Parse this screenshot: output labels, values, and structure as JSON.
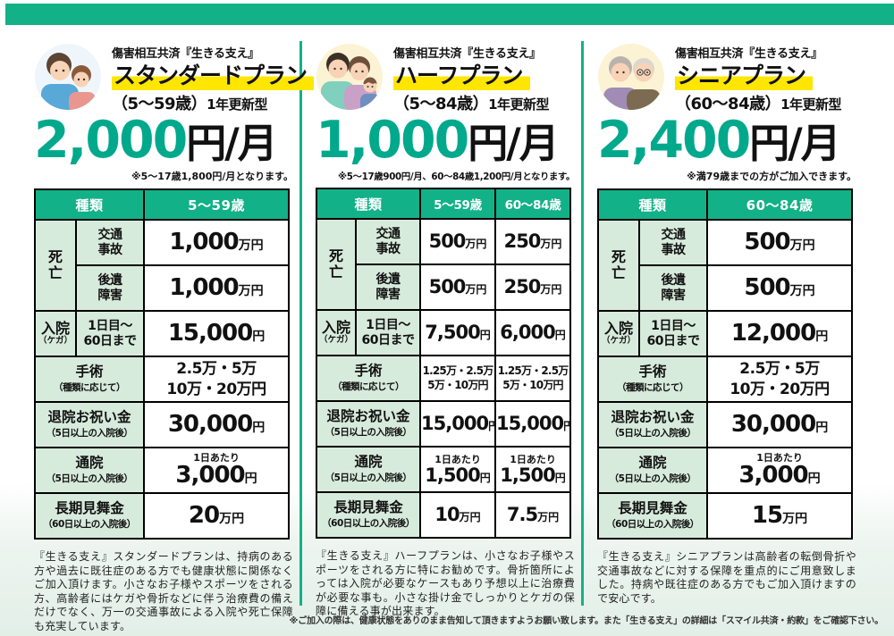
{
  "colors": {
    "teal_accent": "#13b188",
    "price_green": "#00a98c",
    "highlight_yellow": "#ffe600",
    "label_cell_green": "#d7ebdc",
    "table_border": "#000000"
  },
  "benefit_rows": [
    {
      "group": "死\n亡",
      "group_rowspan": 2,
      "sub": "交通\n事故"
    },
    {
      "sub": "後遺\n障害"
    },
    {
      "group": "入院\n（ケガ）",
      "group_rowspan": 1,
      "sub": "1日目～\n60日まで"
    },
    {
      "merged": "手術",
      "note": "（種類に応じて）"
    },
    {
      "merged": "退院お祝い金",
      "note": "（5日以上の入院後）"
    },
    {
      "merged": "通院",
      "note": "（5日以上の入院後）"
    },
    {
      "merged": "長期見舞金",
      "note": "（60日以上の入院後）"
    }
  ],
  "plans": [
    {
      "series_label": "傷害相互共済『生きる支え』",
      "plan_name": "スタンダードプラン",
      "age_range": "（5～59歳）",
      "renewal_type": "1年更新型",
      "price_amount": "2,000",
      "price_unit": "円/月",
      "price_note": "※5～17歳1,800円/月となります。",
      "avatar": "parent-and-child-illustration",
      "table": {
        "kind_header": "種類",
        "columns": [
          {
            "age_label": "5～59歳",
            "values": [
              "1,000万円",
              "1,000万円",
              "15,000円",
              "2.5万・5万|10万・20万円",
              "30,000円",
              "1日あたり|3,000円",
              "20万円"
            ]
          }
        ]
      },
      "description": "『生きる支え』スタンダードプランは、持病のある方や過去に既往症のある方でも健康状態に関係なくご加入頂けます。小さなお子様やスポーツをされる方、高齢者にはケガや骨折などに伴う治療費の備えだけでなく、万一の交通事故による入院や死亡保障も充実しています。"
    },
    {
      "series_label": "傷害相互共済『生きる支え』",
      "plan_name": "ハーフプラン",
      "age_range": "（5～84歳）",
      "renewal_type": "1年更新型",
      "price_amount": "1,000",
      "price_unit": "円/月",
      "price_note": "※5～17歳900円/月、60～84歳1,200円/月となります。",
      "avatar": "family-with-baby-illustration",
      "table": {
        "kind_header": "種類",
        "columns": [
          {
            "age_label": "5～59歳",
            "values": [
              "500万円",
              "500万円",
              "7,500円",
              "1.25万・2.5万|5万・10万円",
              "15,000円",
              "1日あたり|1,500円",
              "10万円"
            ]
          },
          {
            "age_label": "60～84歳",
            "values": [
              "250万円",
              "250万円",
              "6,000円",
              "1.25万・2.5万|5万・10万円",
              "15,000円",
              "1日あたり|1,500円",
              "7.5万円"
            ]
          }
        ]
      },
      "description": "『生きる支え』ハーフプランは、小さなお子様やスポーツをされる方に特にお勧めです。骨折箇所によっては入院が必要なケースもあり予想以上に治療費が必要な事も。小さな掛け金でしっかりとケガの保障に備える事が出来ます。"
    },
    {
      "series_label": "傷害相互共済『生きる支え』",
      "plan_name": "シニアプラン",
      "age_range": "（60～84歳）",
      "renewal_type": "1年更新型",
      "price_amount": "2,400",
      "price_unit": "円/月",
      "price_note": "※満79歳までの方がご加入できます。",
      "avatar": "senior-couple-illustration",
      "table": {
        "kind_header": "種類",
        "columns": [
          {
            "age_label": "60～84歳",
            "values": [
              "500万円",
              "500万円",
              "12,000円",
              "2.5万・5万|10万・20万円",
              "30,000円",
              "1日あたり|3,000円",
              "15万円"
            ]
          }
        ]
      },
      "description": "『生きる支え』シニアプランは高齢者の転倒骨折や交通事故などに対する保障を重点的にご用意致しました。持病や既往症のある方でもご加入頂けますので安心です。"
    }
  ],
  "footnote": "※ご加入の際は、健康状態をありのまま告知して頂きますようお願い致します。また「生きる支え」の詳細は「スマイル共済・約款」をご確認下さい。"
}
